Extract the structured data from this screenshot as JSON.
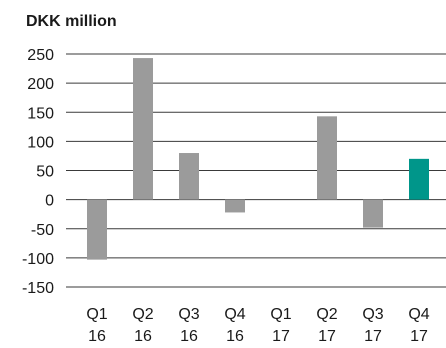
{
  "colors": {
    "bar_default": "#9b9b9b",
    "bar_highlight": "#00968a",
    "gridline": "#3a3a3a",
    "text": "#1a1a1a"
  },
  "chart_data": {
    "type": "bar",
    "title": "DKK million",
    "xlabel": "",
    "ylabel": "",
    "ylim": [
      -150,
      250
    ],
    "yticks": [
      250,
      200,
      150,
      100,
      50,
      0,
      -50,
      -100,
      -150
    ],
    "ytick_labels": [
      "250",
      "200",
      "150",
      "100",
      "50",
      "0",
      "-50",
      "-100",
      "-150"
    ],
    "grid": true,
    "categories": [
      {
        "line1": "Q1",
        "line2": "16"
      },
      {
        "line1": "Q2",
        "line2": "16"
      },
      {
        "line1": "Q3",
        "line2": "16"
      },
      {
        "line1": "Q4",
        "line2": "16"
      },
      {
        "line1": "Q1",
        "line2": "17"
      },
      {
        "line1": "Q2",
        "line2": "17"
      },
      {
        "line1": "Q3",
        "line2": "17"
      },
      {
        "line1": "Q4",
        "line2": "17"
      }
    ],
    "values": [
      -103,
      243,
      80,
      -22,
      0,
      143,
      -48,
      70
    ],
    "highlight_index": 7
  }
}
